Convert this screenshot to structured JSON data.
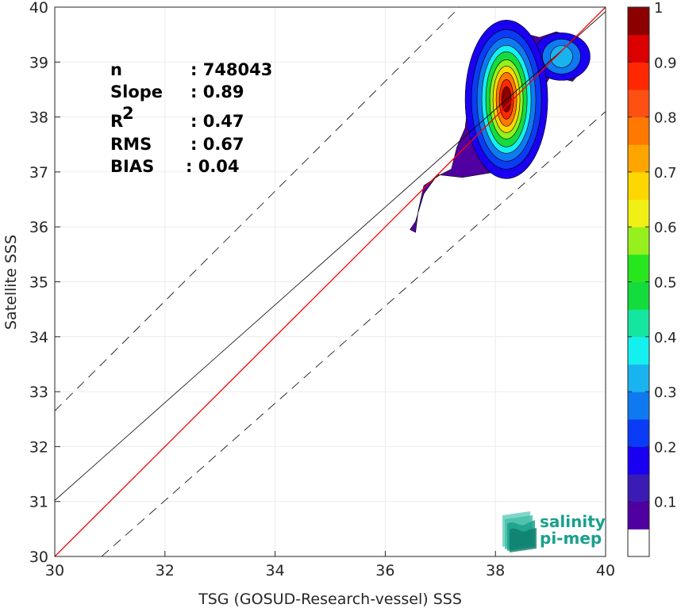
{
  "chart_data": {
    "type": "heatmap",
    "xlabel": "TSG (GOSUD-Research-vessel) SSS",
    "ylabel": "Satellite SSS",
    "xlim": [
      30,
      40
    ],
    "ylim": [
      30,
      40
    ],
    "xticks": [
      "30",
      "32",
      "34",
      "36",
      "38",
      "40"
    ],
    "yticks": [
      "30",
      "31",
      "32",
      "33",
      "34",
      "35",
      "36",
      "37",
      "38",
      "39",
      "40"
    ],
    "grid": true,
    "stats": {
      "n_label": "n",
      "n_value": ": 748043",
      "slope_label": "Slope",
      "slope_value": ": 0.89",
      "r2_label": "R",
      "r2_sup": "2",
      "r2_value": ": 0.47",
      "rms_label": "RMS",
      "rms_value": ": 0.67",
      "bias_label": "BIAS",
      "bias_value": ": 0.04"
    },
    "lines": {
      "identity": {
        "from": [
          30,
          30
        ],
        "to": [
          40,
          40
        ],
        "color": "#ff0000"
      },
      "regression": {
        "from": [
          30,
          31.02
        ],
        "to": [
          40,
          39.92
        ],
        "color": "#000000"
      },
      "upper_dashed": {
        "from": [
          30,
          32.65
        ],
        "to": [
          40,
          42.65
        ],
        "color": "#000000"
      },
      "lower_dashed": {
        "from": [
          30.85,
          30
        ],
        "to": [
          40,
          38.1
        ],
        "color": "#000000"
      }
    },
    "density_peaks": [
      {
        "x": 38.2,
        "y": 38.35,
        "peak": 0.95
      },
      {
        "x": 39.2,
        "y": 39.1,
        "peak": 0.3
      }
    ],
    "colorbar": {
      "range": [
        0,
        1
      ],
      "ticks": [
        "0.1",
        "0.2",
        "0.3",
        "0.4",
        "0.5",
        "0.6",
        "0.7",
        "0.8",
        "0.9",
        "1"
      ],
      "levels": [
        {
          "from": 0.0,
          "to": 0.05,
          "color": "#ffffff"
        },
        {
          "from": 0.05,
          "to": 0.1,
          "color": "#5000a0"
        },
        {
          "from": 0.1,
          "to": 0.15,
          "color": "#3a1bb4"
        },
        {
          "from": 0.15,
          "to": 0.2,
          "color": "#1a00f0"
        },
        {
          "from": 0.2,
          "to": 0.25,
          "color": "#0a3cf5"
        },
        {
          "from": 0.25,
          "to": 0.3,
          "color": "#0f7af0"
        },
        {
          "from": 0.3,
          "to": 0.35,
          "color": "#19b4f0"
        },
        {
          "from": 0.35,
          "to": 0.4,
          "color": "#14f0f0"
        },
        {
          "from": 0.4,
          "to": 0.45,
          "color": "#14e6a0"
        },
        {
          "from": 0.45,
          "to": 0.5,
          "color": "#14dc3c"
        },
        {
          "from": 0.5,
          "to": 0.55,
          "color": "#28e61e"
        },
        {
          "from": 0.55,
          "to": 0.6,
          "color": "#96f01e"
        },
        {
          "from": 0.6,
          "to": 0.65,
          "color": "#f0f014"
        },
        {
          "from": 0.65,
          "to": 0.7,
          "color": "#ffd700"
        },
        {
          "from": 0.7,
          "to": 0.75,
          "color": "#ffa500"
        },
        {
          "from": 0.75,
          "to": 0.8,
          "color": "#ff7800"
        },
        {
          "from": 0.8,
          "to": 0.85,
          "color": "#ff5014"
        },
        {
          "from": 0.85,
          "to": 0.9,
          "color": "#ff2800"
        },
        {
          "from": 0.9,
          "to": 0.95,
          "color": "#dc0000"
        },
        {
          "from": 0.95,
          "to": 1.0,
          "color": "#8c0000"
        }
      ]
    }
  },
  "logo": {
    "line1": "salinity",
    "line2": "pi-mep",
    "color": "#1aa08c"
  }
}
